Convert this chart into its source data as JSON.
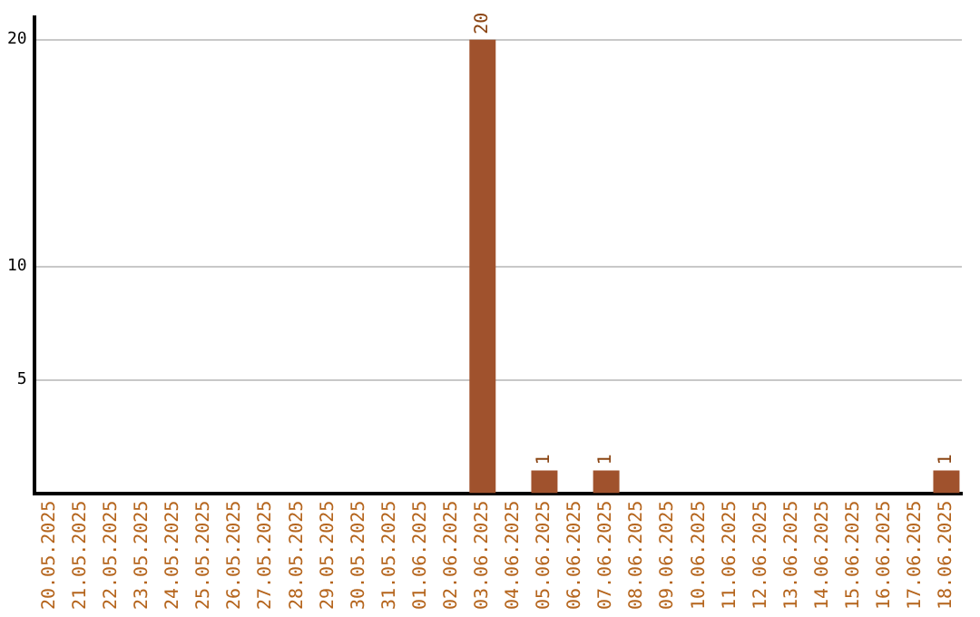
{
  "chart_data": {
    "type": "bar",
    "categories": [
      "20.05.2025",
      "21.05.2025",
      "22.05.2025",
      "23.05.2025",
      "24.05.2025",
      "25.05.2025",
      "26.05.2025",
      "27.05.2025",
      "28.05.2025",
      "29.05.2025",
      "30.05.2025",
      "31.05.2025",
      "01.06.2025",
      "02.06.2025",
      "03.06.2025",
      "04.06.2025",
      "05.06.2025",
      "06.06.2025",
      "07.06.2025",
      "08.06.2025",
      "09.06.2025",
      "10.06.2025",
      "11.06.2025",
      "12.06.2025",
      "13.06.2025",
      "14.06.2025",
      "15.06.2025",
      "16.06.2025",
      "17.06.2025",
      "18.06.2025"
    ],
    "values": [
      0,
      0,
      0,
      0,
      0,
      0,
      0,
      0,
      0,
      0,
      0,
      0,
      0,
      0,
      20,
      0,
      1,
      0,
      1,
      0,
      0,
      0,
      0,
      0,
      0,
      0,
      0,
      0,
      0,
      1
    ],
    "value_labels": [
      null,
      null,
      null,
      null,
      null,
      null,
      null,
      null,
      null,
      null,
      null,
      null,
      null,
      null,
      "20",
      null,
      "1",
      null,
      "1",
      null,
      null,
      null,
      null,
      null,
      null,
      null,
      null,
      null,
      null,
      "1"
    ],
    "color": "#a0522d",
    "ylim": [
      0,
      21
    ],
    "yticks": [
      5,
      10,
      20
    ],
    "grid": "y",
    "legend": false
  }
}
